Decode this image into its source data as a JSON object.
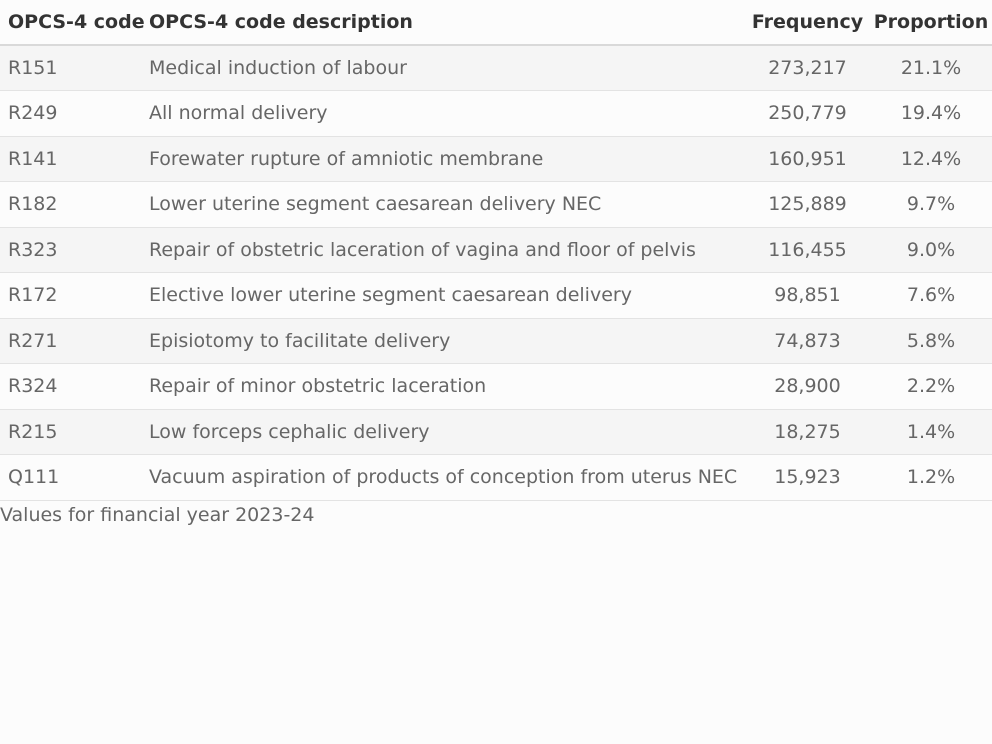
{
  "table": {
    "headers": {
      "code": "OPCS-4 code",
      "description": "OPCS-4 code description",
      "frequency": "Frequency",
      "proportion": "Proportion"
    },
    "rows": [
      {
        "code": "R151",
        "description": "Medical induction of labour",
        "frequency": "273,217",
        "proportion": "21.1%"
      },
      {
        "code": "R249",
        "description": "All normal delivery",
        "frequency": "250,779",
        "proportion": "19.4%"
      },
      {
        "code": "R141",
        "description": "Forewater rupture of amniotic membrane",
        "frequency": "160,951",
        "proportion": "12.4%"
      },
      {
        "code": "R182",
        "description": "Lower uterine segment caesarean delivery NEC",
        "frequency": "125,889",
        "proportion": "9.7%"
      },
      {
        "code": "R323",
        "description": "Repair of obstetric laceration of vagina and floor of pelvis",
        "frequency": "116,455",
        "proportion": "9.0%"
      },
      {
        "code": "R172",
        "description": "Elective lower uterine segment caesarean delivery",
        "frequency": "98,851",
        "proportion": "7.6%"
      },
      {
        "code": "R271",
        "description": "Episiotomy to facilitate delivery",
        "frequency": "74,873",
        "proportion": "5.8%"
      },
      {
        "code": "R324",
        "description": "Repair of minor obstetric laceration",
        "frequency": "28,900",
        "proportion": "2.2%"
      },
      {
        "code": "R215",
        "description": "Low forceps cephalic delivery",
        "frequency": "18,275",
        "proportion": "1.4%"
      },
      {
        "code": "Q111",
        "description": "Vacuum aspiration of products of conception from uterus NEC",
        "frequency": "15,923",
        "proportion": "1.2%"
      }
    ]
  },
  "caption": "Values for financial year 2023-24"
}
